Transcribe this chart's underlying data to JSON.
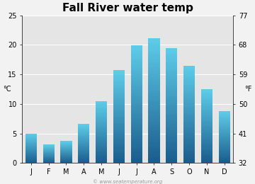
{
  "title": "Fall River water temp",
  "months": [
    "J",
    "F",
    "M",
    "A",
    "M",
    "J",
    "J",
    "A",
    "S",
    "O",
    "N",
    "D"
  ],
  "values_c": [
    5.0,
    3.1,
    3.7,
    6.6,
    10.5,
    15.7,
    19.9,
    21.1,
    19.4,
    16.5,
    12.5,
    8.8
  ],
  "ylabel_left": "°C",
  "ylabel_right": "°F",
  "ylim_c": [
    0,
    25
  ],
  "yticks_c": [
    0,
    5,
    10,
    15,
    20,
    25
  ],
  "yticks_f": [
    32,
    41,
    50,
    59,
    68,
    77
  ],
  "bar_color_top": "#5ecce8",
  "bar_color_bottom": "#1a5c8c",
  "bg_color": "#f2f2f2",
  "plot_bg_color": "#e5e5e5",
  "title_fontsize": 11,
  "axis_fontsize": 7,
  "label_fontsize": 7,
  "watermark": "© www.seatemperature.org"
}
